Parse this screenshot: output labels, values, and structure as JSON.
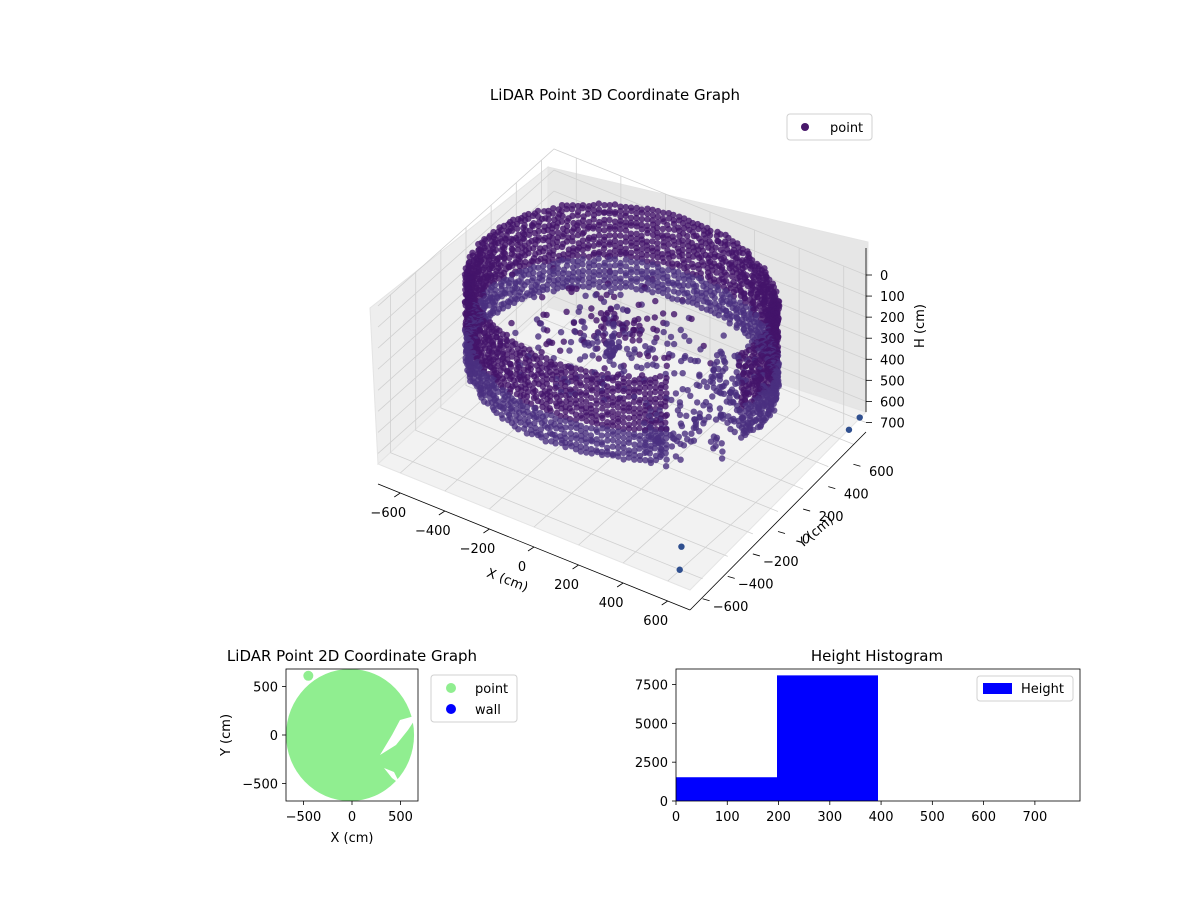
{
  "chart_data": [
    {
      "type": "scatter",
      "projection": "3d",
      "title": "LiDAR Point 3D Coordinate Graph",
      "xlabel": "X (cm)",
      "ylabel": "Y (cm)",
      "zlabel": "H (cm)",
      "xlim": [
        -700,
        700
      ],
      "ylim": [
        -700,
        700
      ],
      "zlim": [
        750,
        0
      ],
      "xticks": [
        -600,
        -400,
        -200,
        0,
        200,
        400,
        600
      ],
      "yticks": [
        -600,
        -400,
        -200,
        0,
        200,
        400,
        600
      ],
      "zticks": [
        0,
        100,
        200,
        300,
        400,
        500,
        600,
        700
      ],
      "legend": {
        "position": "top-right",
        "entries": [
          "point"
        ]
      },
      "series": [
        {
          "name": "point",
          "color": "#48186a",
          "description_points": "ring-shaped point cloud around origin, radius about 600 cm, heights 0-400 cm, with scattered outliers toward +X"
        }
      ],
      "outliers": [
        {
          "x": 620,
          "y": -640,
          "z": 720
        },
        {
          "x": 560,
          "y": -520,
          "z": 700
        },
        {
          "x": 680,
          "y": 600,
          "z": 690
        },
        {
          "x": 700,
          "y": 650,
          "z": 650
        }
      ],
      "grid": true
    },
    {
      "type": "scatter",
      "title": "LiDAR Point 2D Coordinate Graph",
      "xlabel": "X (cm)",
      "ylabel": "Y (cm)",
      "xlim": [
        -680,
        680
      ],
      "ylim": [
        -680,
        680
      ],
      "xticks": [
        -500,
        0,
        500
      ],
      "yticks": [
        -500,
        0,
        500
      ],
      "legend": {
        "position": "outside-right",
        "entries": [
          {
            "name": "point",
            "color": "#90ee90"
          },
          {
            "name": "wall",
            "color": "#0000ff"
          }
        ]
      },
      "grid": false
    },
    {
      "type": "bar",
      "subtype": "histogram",
      "title": "Height Histogram",
      "bins": [
        {
          "from": 0,
          "to": 197,
          "count": 1530
        },
        {
          "from": 197,
          "to": 394,
          "count": 8090
        },
        {
          "from": 394,
          "to": 591,
          "count": 0
        },
        {
          "from": 591,
          "to": 788,
          "count": 0
        }
      ],
      "xlim": [
        0,
        788
      ],
      "ylim": [
        0,
        8500
      ],
      "xticks": [
        0,
        100,
        200,
        300,
        400,
        500,
        600,
        700
      ],
      "yticks": [
        0,
        2500,
        5000,
        7500
      ],
      "legend": {
        "position": "top-right",
        "entries": [
          "Height"
        ]
      },
      "color": "#0000ff",
      "grid": false
    }
  ]
}
